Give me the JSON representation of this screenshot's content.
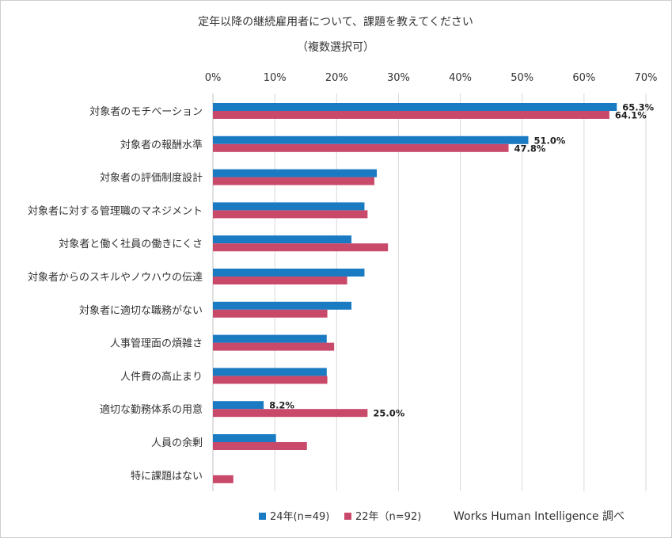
{
  "chart_data": {
    "type": "bar",
    "orientation": "horizontal",
    "title_line1": "定年以降の継続雇用者について、課題を教えてください",
    "title_line2": "（複数選択可）",
    "x_ticks": [
      "0%",
      "10%",
      "20%",
      "30%",
      "40%",
      "50%",
      "60%",
      "70%"
    ],
    "xlim": [
      0,
      70
    ],
    "grid": true,
    "categories": [
      "対象者のモチベーション",
      "対象者の報酬水準",
      "対象者の評価制度設計",
      "対象者に対する管理職のマネジメント",
      "対象者と働く社員の働きにくさ",
      "対象者からのスキルやノウハウの伝達",
      "対象者に適切な職務がない",
      "人事管理面の煩雑さ",
      "人件費の高止まり",
      "適切な勤務体系の用意",
      "人員の余剰",
      "特に課題はない"
    ],
    "series": [
      {
        "name": "24年(n=49)",
        "color": "#1a7bc3",
        "values": [
          65.3,
          51.0,
          26.5,
          24.5,
          22.4,
          24.5,
          22.4,
          18.4,
          18.4,
          8.2,
          10.2,
          0
        ],
        "labels": [
          "65.3%",
          "51.0%",
          "",
          "",
          "",
          "",
          "",
          "",
          "",
          "8.2%",
          "",
          ""
        ]
      },
      {
        "name": "22年（n=92)",
        "color": "#c8496a",
        "values": [
          64.1,
          47.8,
          26.1,
          25.0,
          28.3,
          21.7,
          18.5,
          19.6,
          18.5,
          25.0,
          15.2,
          3.3
        ],
        "labels": [
          "64.1%",
          "47.8%",
          "",
          "",
          "",
          "",
          "",
          "",
          "",
          "25.0%",
          "",
          ""
        ]
      }
    ],
    "legend_position": "bottom",
    "source": "Works Human Intelligence 調べ"
  }
}
